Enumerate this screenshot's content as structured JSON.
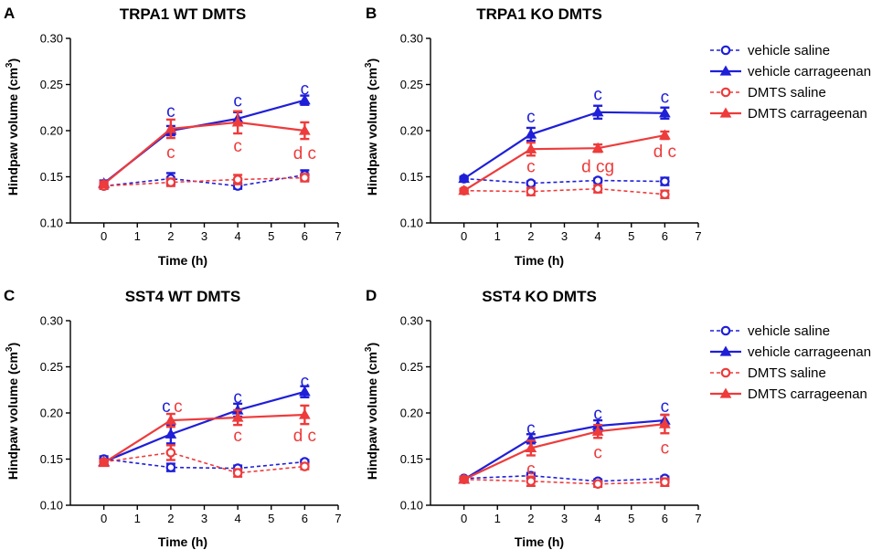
{
  "colors": {
    "vehicle": "#1f1fd8",
    "dmts": "#ee3b3b"
  },
  "legend": [
    {
      "label": "vehicle saline",
      "color": "vehicle",
      "marker": "circle",
      "dashed": true
    },
    {
      "label": "vehicle carrageenan",
      "color": "vehicle",
      "marker": "triangle",
      "dashed": false
    },
    {
      "label": "DMTS saline",
      "color": "dmts",
      "marker": "circle",
      "dashed": true
    },
    {
      "label": "DMTS carrageenan",
      "color": "dmts",
      "marker": "triangle",
      "dashed": false
    }
  ],
  "chart_data": [
    {
      "panel": "A",
      "title": "TRPA1 WT DMTS",
      "type": "line",
      "xlabel": "Time (h)",
      "ylabel": "Hindpaw volume (cm³)",
      "xlim": [
        -1,
        7
      ],
      "ylim": [
        0.1,
        0.3
      ],
      "xticks": [
        0,
        1,
        2,
        3,
        4,
        5,
        6,
        7
      ],
      "yticks": [
        0.1,
        0.15,
        0.2,
        0.25,
        0.3
      ],
      "ytick_labels": [
        "0.10",
        "0.15",
        "0.20",
        "0.25",
        "0.30"
      ],
      "series": [
        {
          "name": "vehicle saline",
          "x": [
            0,
            2,
            4,
            6
          ],
          "y": [
            0.14,
            0.148,
            0.14,
            0.152
          ],
          "err": [
            0.003,
            0.006,
            0.003,
            0.005
          ]
        },
        {
          "name": "vehicle carrageenan",
          "x": [
            0,
            2,
            4,
            6
          ],
          "y": [
            0.143,
            0.2,
            0.213,
            0.233
          ],
          "err": [
            0.003,
            0.005,
            0.007,
            0.005
          ]
        },
        {
          "name": "DMTS saline",
          "x": [
            0,
            2,
            4,
            6
          ],
          "y": [
            0.14,
            0.144,
            0.147,
            0.149
          ],
          "err": [
            0.003,
            0.004,
            0.005,
            0.004
          ]
        },
        {
          "name": "DMTS carrageenan",
          "x": [
            0,
            2,
            4,
            6
          ],
          "y": [
            0.142,
            0.202,
            0.209,
            0.2
          ],
          "err": [
            0.003,
            0.01,
            0.012,
            0.009
          ]
        }
      ],
      "annotations": [
        {
          "text": "c",
          "x": 2,
          "y": 0.222,
          "color": "vehicle"
        },
        {
          "text": "c",
          "x": 2,
          "y": 0.177,
          "color": "dmts"
        },
        {
          "text": "c",
          "x": 4,
          "y": 0.233,
          "color": "vehicle"
        },
        {
          "text": "c",
          "x": 4,
          "y": 0.184,
          "color": "dmts"
        },
        {
          "text": "c",
          "x": 6,
          "y": 0.246,
          "color": "vehicle"
        },
        {
          "text": "d c",
          "x": 6,
          "y": 0.176,
          "color": "dmts"
        }
      ]
    },
    {
      "panel": "B",
      "title": "TRPA1 KO DMTS",
      "type": "line",
      "xlabel": "Time (h)",
      "ylabel": "Hindpaw volume (cm³)",
      "xlim": [
        -1,
        7
      ],
      "ylim": [
        0.1,
        0.3
      ],
      "xticks": [
        0,
        1,
        2,
        3,
        4,
        5,
        6,
        7
      ],
      "yticks": [
        0.1,
        0.15,
        0.2,
        0.25,
        0.3
      ],
      "ytick_labels": [
        "0.10",
        "0.15",
        "0.20",
        "0.25",
        "0.30"
      ],
      "series": [
        {
          "name": "vehicle saline",
          "x": [
            0,
            2,
            4,
            6
          ],
          "y": [
            0.148,
            0.143,
            0.146,
            0.145
          ],
          "err": [
            0.002,
            0.002,
            0.002,
            0.004
          ]
        },
        {
          "name": "vehicle carrageenan",
          "x": [
            0,
            2,
            4,
            6
          ],
          "y": [
            0.148,
            0.196,
            0.22,
            0.219
          ],
          "err": [
            0.002,
            0.007,
            0.007,
            0.006
          ]
        },
        {
          "name": "DMTS saline",
          "x": [
            0,
            2,
            4,
            6
          ],
          "y": [
            0.135,
            0.134,
            0.137,
            0.131
          ],
          "err": [
            0.002,
            0.004,
            0.004,
            0.004
          ]
        },
        {
          "name": "DMTS carrageenan",
          "x": [
            0,
            2,
            4,
            6
          ],
          "y": [
            0.135,
            0.18,
            0.181,
            0.195
          ],
          "err": [
            0.002,
            0.007,
            0.004,
            0.004
          ]
        }
      ],
      "annotations": [
        {
          "text": "c",
          "x": 2,
          "y": 0.216,
          "color": "vehicle"
        },
        {
          "text": "c",
          "x": 2,
          "y": 0.162,
          "color": "dmts"
        },
        {
          "text": "c",
          "x": 4,
          "y": 0.24,
          "color": "vehicle"
        },
        {
          "text": "d cg",
          "x": 4,
          "y": 0.162,
          "color": "dmts"
        },
        {
          "text": "c",
          "x": 6,
          "y": 0.237,
          "color": "vehicle"
        },
        {
          "text": "d c",
          "x": 6,
          "y": 0.178,
          "color": "dmts"
        }
      ]
    },
    {
      "panel": "C",
      "title": "SST4 WT DMTS",
      "type": "line",
      "xlabel": "Time (h)",
      "ylabel": "Hindpaw volume (cm³)",
      "xlim": [
        -1,
        7
      ],
      "ylim": [
        0.1,
        0.3
      ],
      "xticks": [
        0,
        1,
        2,
        3,
        4,
        5,
        6,
        7
      ],
      "yticks": [
        0.1,
        0.15,
        0.2,
        0.25,
        0.3
      ],
      "ytick_labels": [
        "0.10",
        "0.15",
        "0.20",
        "0.25",
        "0.30"
      ],
      "series": [
        {
          "name": "vehicle saline",
          "x": [
            0,
            2,
            4,
            6
          ],
          "y": [
            0.15,
            0.141,
            0.14,
            0.147
          ],
          "err": [
            0.003,
            0.004,
            0.003,
            0.002
          ]
        },
        {
          "name": "vehicle carrageenan",
          "x": [
            0,
            2,
            4,
            6
          ],
          "y": [
            0.147,
            0.177,
            0.203,
            0.223
          ],
          "err": [
            0.003,
            0.01,
            0.007,
            0.006
          ]
        },
        {
          "name": "DMTS saline",
          "x": [
            0,
            2,
            4,
            6
          ],
          "y": [
            0.147,
            0.157,
            0.135,
            0.142
          ],
          "err": [
            0.002,
            0.008,
            0.004,
            0.003
          ]
        },
        {
          "name": "DMTS carrageenan",
          "x": [
            0,
            2,
            4,
            6
          ],
          "y": [
            0.146,
            0.192,
            0.195,
            0.198
          ],
          "err": [
            0.002,
            0.007,
            0.008,
            0.01
          ]
        }
      ],
      "annotations": [
        {
          "text": "c",
          "x": 2,
          "y": 0.208,
          "color": "vehicle",
          "dx": -5
        },
        {
          "text": "c",
          "x": 2,
          "y": 0.208,
          "color": "dmts",
          "dx": 8
        },
        {
          "text": "c",
          "x": 4,
          "y": 0.218,
          "color": "vehicle"
        },
        {
          "text": "c",
          "x": 4,
          "y": 0.176,
          "color": "dmts"
        },
        {
          "text": "c",
          "x": 6,
          "y": 0.235,
          "color": "vehicle"
        },
        {
          "text": "d c",
          "x": 6,
          "y": 0.176,
          "color": "dmts"
        }
      ]
    },
    {
      "panel": "D",
      "title": "SST4 KO DMTS",
      "type": "line",
      "xlabel": "Time (h)",
      "ylabel": "Hindpaw volume (cm³)",
      "xlim": [
        -1,
        7
      ],
      "ylim": [
        0.1,
        0.3
      ],
      "xticks": [
        0,
        1,
        2,
        3,
        4,
        5,
        6,
        7
      ],
      "yticks": [
        0.1,
        0.15,
        0.2,
        0.25,
        0.3
      ],
      "ytick_labels": [
        "0.10",
        "0.15",
        "0.20",
        "0.25",
        "0.30"
      ],
      "series": [
        {
          "name": "vehicle saline",
          "x": [
            0,
            2,
            4,
            6
          ],
          "y": [
            0.129,
            0.132,
            0.126,
            0.129
          ],
          "err": [
            0.002,
            0.003,
            0.002,
            0.002
          ]
        },
        {
          "name": "vehicle carrageenan",
          "x": [
            0,
            2,
            4,
            6
          ],
          "y": [
            0.128,
            0.172,
            0.186,
            0.192
          ],
          "err": [
            0.003,
            0.005,
            0.006,
            0.006
          ]
        },
        {
          "name": "DMTS saline",
          "x": [
            0,
            2,
            4,
            6
          ],
          "y": [
            0.128,
            0.126,
            0.123,
            0.125
          ],
          "err": [
            0.002,
            0.005,
            0.003,
            0.004
          ]
        },
        {
          "name": "DMTS carrageenan",
          "x": [
            0,
            2,
            4,
            6
          ],
          "y": [
            0.128,
            0.162,
            0.18,
            0.188
          ],
          "err": [
            0.003,
            0.008,
            0.007,
            0.01
          ]
        }
      ],
      "annotations": [
        {
          "text": "c",
          "x": 2,
          "y": 0.184,
          "color": "vehicle"
        },
        {
          "text": "c",
          "x": 2,
          "y": 0.14,
          "color": "dmts"
        },
        {
          "text": "c",
          "x": 4,
          "y": 0.2,
          "color": "vehicle"
        },
        {
          "text": "c",
          "x": 4,
          "y": 0.158,
          "color": "dmts"
        },
        {
          "text": "c",
          "x": 6,
          "y": 0.208,
          "color": "vehicle"
        },
        {
          "text": "c",
          "x": 6,
          "y": 0.163,
          "color": "dmts"
        }
      ]
    }
  ]
}
